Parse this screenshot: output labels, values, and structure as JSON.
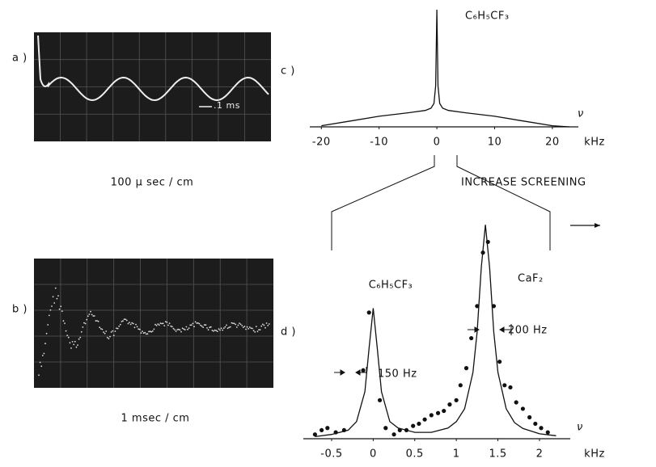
{
  "panel_a": {
    "label": "a )",
    "caption": "100 μ sec / cm",
    "marker": ".1 ms"
  },
  "panel_b": {
    "label": "b )",
    "caption": "1 msec / cm"
  },
  "arrow_label": "INCREASE SCREENING",
  "chart_data": [
    {
      "type": "line",
      "panel_label": "c )",
      "title": "C₆H₅CF₃",
      "x_label": "kHz",
      "y_label": "ν",
      "xlim": [
        -22,
        24.5
      ],
      "ylim": [
        0,
        1
      ],
      "xticks": [
        -20,
        -10,
        0,
        10,
        20
      ],
      "series": [
        {
          "type": "line",
          "color": "#111",
          "x": [
            -20,
            -15,
            -10,
            -5,
            -2,
            -1,
            -0.5,
            -0.2,
            0,
            0.2,
            0.5,
            1,
            2,
            5,
            10,
            15,
            20,
            23
          ],
          "values": [
            0.01,
            0.05,
            0.09,
            0.12,
            0.14,
            0.16,
            0.2,
            0.35,
            1,
            0.35,
            0.2,
            0.16,
            0.14,
            0.12,
            0.09,
            0.05,
            0.01,
            0
          ]
        }
      ]
    },
    {
      "type": "line",
      "panel_label": "d )",
      "x_label": "kHz",
      "y_label": "ν",
      "xlim": [
        -0.84,
        2.37
      ],
      "ylim": [
        0,
        1.05
      ],
      "xticks": [
        -0.5,
        0,
        0.5,
        1,
        1.5,
        2
      ],
      "annotations": [
        "C₆H₅CF₃",
        "CaF₂",
        "150 Hz",
        "200 Hz"
      ],
      "series": [
        {
          "type": "line",
          "color": "#111",
          "x": [
            -0.7,
            -0.5,
            -0.3,
            -0.2,
            -0.1,
            -0.05,
            0,
            0.05,
            0.1,
            0.2,
            0.3,
            0.5,
            0.7,
            0.9,
            1.0,
            1.1,
            1.2,
            1.25,
            1.3,
            1.35,
            1.4,
            1.45,
            1.5,
            1.6,
            1.7,
            1.8,
            2.0,
            2.2
          ],
          "values": [
            0.01,
            0.02,
            0.04,
            0.08,
            0.22,
            0.42,
            0.61,
            0.42,
            0.22,
            0.08,
            0.05,
            0.03,
            0.03,
            0.05,
            0.08,
            0.14,
            0.31,
            0.5,
            0.8,
            1.0,
            0.8,
            0.5,
            0.31,
            0.14,
            0.075,
            0.048,
            0.023,
            0.014
          ]
        },
        {
          "type": "scatter",
          "color": "#111",
          "x": [
            -0.7,
            -0.62,
            -0.55,
            -0.45,
            -0.35,
            -0.12,
            -0.05,
            0.08,
            0.15,
            0.25,
            0.32,
            0.4,
            0.48,
            0.55,
            0.62,
            0.7,
            0.78,
            0.85,
            0.92,
            1.0,
            1.05,
            1.12,
            1.18,
            1.25,
            1.32,
            1.38,
            1.45,
            1.52,
            1.58,
            1.65,
            1.72,
            1.8,
            1.88,
            1.95,
            2.02,
            2.1
          ],
          "values": [
            0.02,
            0.04,
            0.05,
            0.03,
            0.04,
            0.32,
            0.59,
            0.18,
            0.05,
            0.02,
            0.04,
            0.04,
            0.06,
            0.07,
            0.09,
            0.11,
            0.12,
            0.13,
            0.16,
            0.18,
            0.25,
            0.33,
            0.47,
            0.62,
            0.87,
            0.92,
            0.62,
            0.36,
            0.25,
            0.24,
            0.17,
            0.14,
            0.1,
            0.07,
            0.05,
            0.03
          ]
        }
      ]
    }
  ]
}
